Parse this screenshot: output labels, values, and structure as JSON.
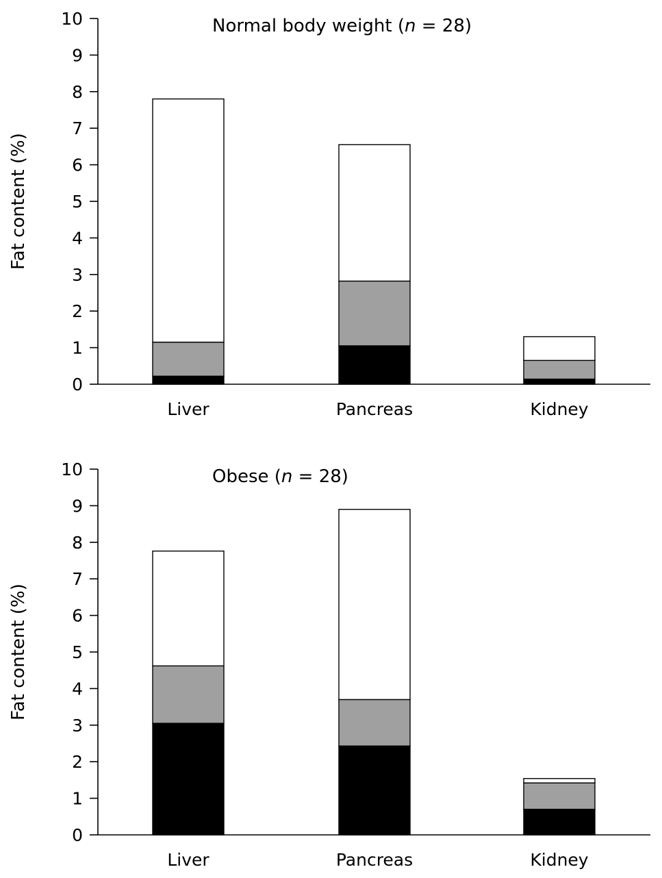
{
  "colors": {
    "bottom": "#000000",
    "middle": "#a0a0a0",
    "top": "#ffffff",
    "outline": "#000000"
  },
  "chart_data": [
    {
      "type": "bar",
      "stacked": true,
      "title_main": "Normal body weight (",
      "title_n": "n",
      "title_rest": " = 28)",
      "ylabel": "Fat content (%)",
      "ylim": [
        0,
        10
      ],
      "yticks": [
        "0",
        "1",
        "2",
        "3",
        "4",
        "5",
        "6",
        "7",
        "8",
        "9",
        "10"
      ],
      "categories": [
        "Liver",
        "Pancreas",
        "Kidney"
      ],
      "series": [
        {
          "values": [
            0.22,
            1.05,
            0.14
          ]
        },
        {
          "values": [
            0.93,
            1.77,
            0.51
          ]
        },
        {
          "values": [
            6.65,
            3.73,
            0.65
          ]
        }
      ]
    },
    {
      "type": "bar",
      "stacked": true,
      "title_main": "Obese (",
      "title_n": "n",
      "title_rest": " = 28)",
      "ylabel": "Fat content (%)",
      "ylim": [
        0,
        10
      ],
      "yticks": [
        "0",
        "1",
        "2",
        "3",
        "4",
        "5",
        "6",
        "7",
        "8",
        "9",
        "10"
      ],
      "categories": [
        "Liver",
        "Pancreas",
        "Kidney"
      ],
      "series": [
        {
          "values": [
            3.05,
            2.43,
            0.7
          ]
        },
        {
          "values": [
            1.57,
            1.27,
            0.72
          ]
        },
        {
          "values": [
            3.14,
            5.2,
            0.12
          ]
        }
      ]
    }
  ]
}
